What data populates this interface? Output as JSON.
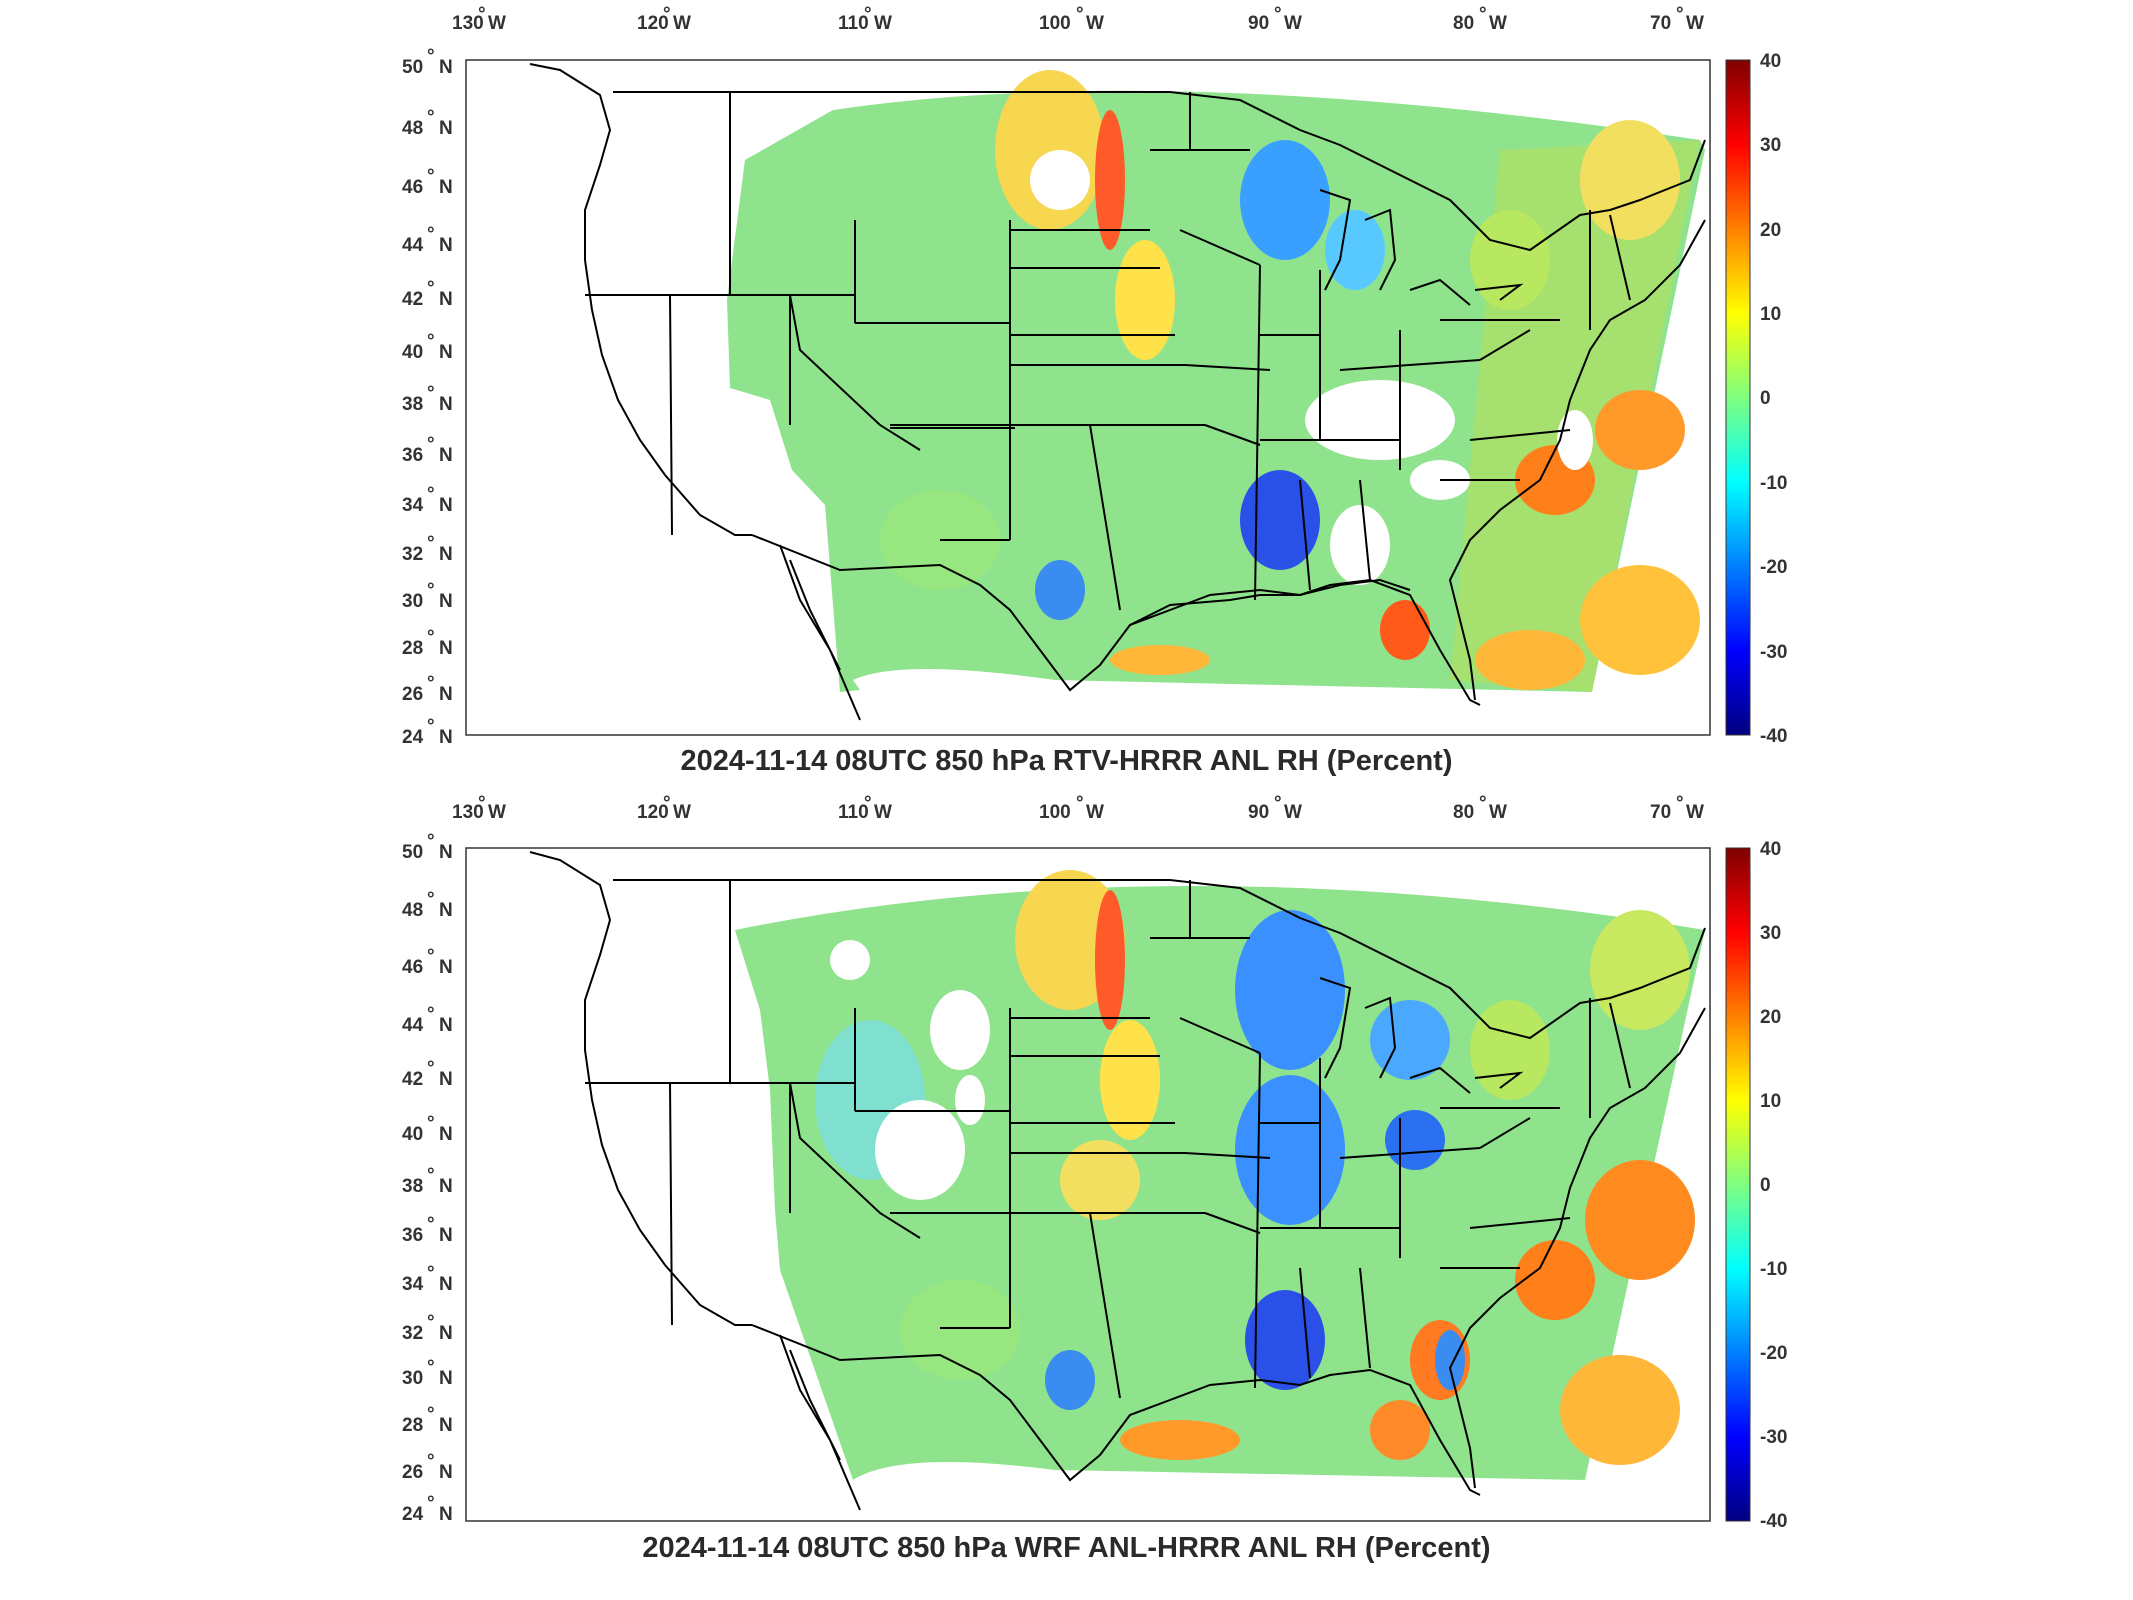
{
  "maps": [
    {
      "title": "2024-11-14 08UTC 850 hPa RTV-HRRR ANL RH (Percent)",
      "lon_ticks": [
        "130",
        "120",
        "110",
        "100",
        "90",
        "80",
        "70"
      ],
      "lon_hemisphere": "W",
      "lat_ticks": [
        "50",
        "48",
        "46",
        "44",
        "42",
        "40",
        "38",
        "36",
        "34",
        "32",
        "30",
        "28",
        "26",
        "24"
      ],
      "lat_hemisphere": "N",
      "colorbar": {
        "ticks": [
          "40",
          "30",
          "20",
          "10",
          "0",
          "-10",
          "-20",
          "-30",
          "-40"
        ],
        "colormap": "jet"
      }
    },
    {
      "title": "2024-11-14 08UTC 850 hPa WRF ANL-HRRR ANL RH (Percent)",
      "lon_ticks": [
        "130",
        "120",
        "110",
        "100",
        "90",
        "80",
        "70"
      ],
      "lon_hemisphere": "W",
      "lat_ticks": [
        "50",
        "48",
        "46",
        "44",
        "42",
        "40",
        "38",
        "36",
        "34",
        "32",
        "30",
        "28",
        "26",
        "24"
      ],
      "lat_hemisphere": "N",
      "colorbar": {
        "ticks": [
          "40",
          "30",
          "20",
          "10",
          "0",
          "-10",
          "-20",
          "-30",
          "-40"
        ],
        "colormap": "jet"
      }
    }
  ],
  "colors": {
    "jet": [
      "#00007f",
      "#0000ff",
      "#007fff",
      "#00ffff",
      "#7fff7f",
      "#ffff00",
      "#ff7f00",
      "#ff0000",
      "#7f0000"
    ],
    "field_base": "#8fe38c"
  }
}
